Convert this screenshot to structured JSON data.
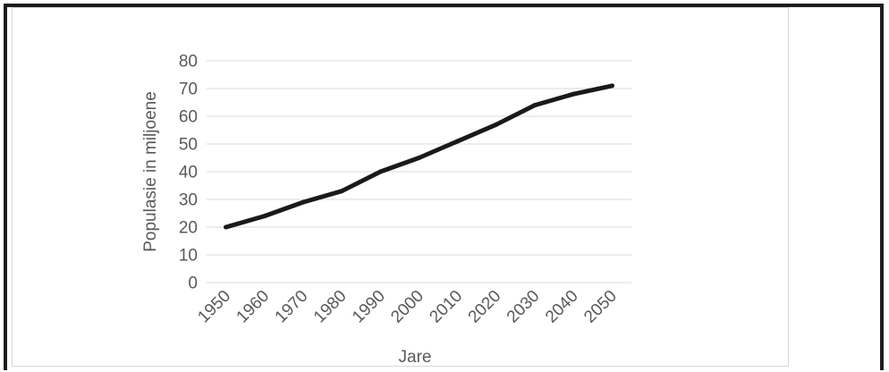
{
  "chart_data": {
    "type": "line",
    "title": "",
    "xlabel": "Jare",
    "ylabel": "Populasie in miljoene",
    "ylim": [
      0,
      80
    ],
    "yticks": [
      0,
      10,
      20,
      30,
      40,
      50,
      60,
      70,
      80
    ],
    "categories": [
      "1950",
      "1960",
      "1970",
      "1980",
      "1990",
      "2000",
      "2010",
      "2020",
      "2030",
      "2040",
      "2050"
    ],
    "series": [
      {
        "values": [
          20,
          24,
          29,
          33,
          40,
          45,
          51,
          57,
          64,
          68,
          71
        ]
      }
    ],
    "grid": true,
    "legend": "none",
    "colors": {
      "line": "#1a1a1a",
      "grid": "#d9d9d9",
      "text": "#595959"
    }
  }
}
